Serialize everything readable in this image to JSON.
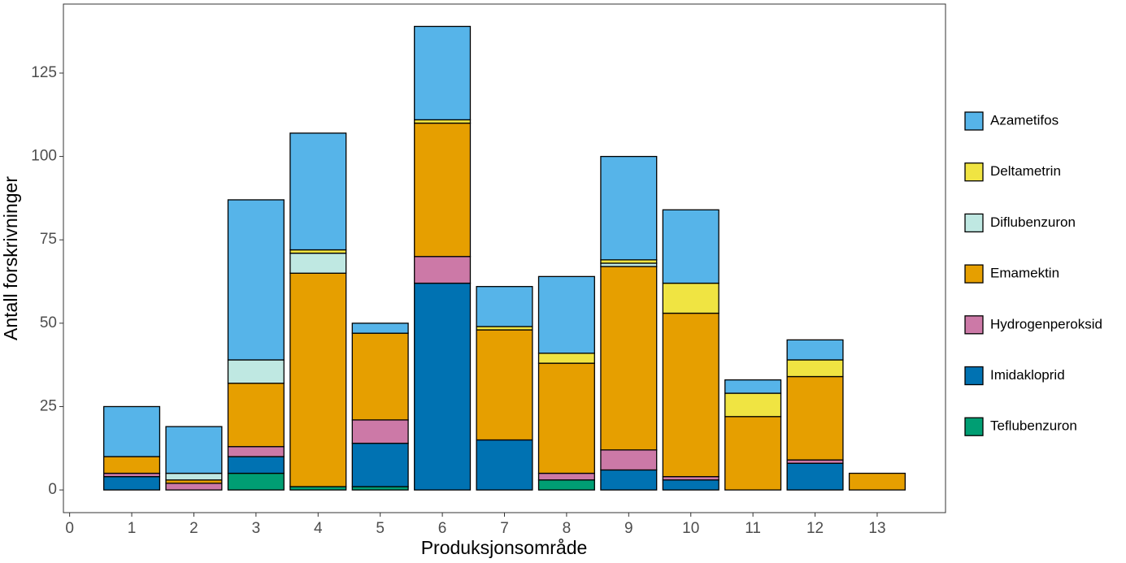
{
  "chart_data": {
    "type": "stacked_bar",
    "x_label": "Produksjonsområde",
    "y_label": "Antall forskrivninger",
    "x": [
      1,
      2,
      3,
      4,
      5,
      6,
      7,
      8,
      9,
      10,
      11,
      12,
      13
    ],
    "xlim": [
      -0.1,
      14.1
    ],
    "xticks": [
      0,
      1,
      2,
      3,
      4,
      5,
      6,
      7,
      8,
      9,
      10,
      11,
      12,
      13
    ],
    "ylim": [
      -6.8,
      145.7
    ],
    "yticks": [
      0,
      25,
      50,
      75,
      100,
      125
    ],
    "legend": "right",
    "series": [
      {
        "name": "Azametifos",
        "color": "#56B4E9",
        "values": [
          15,
          14,
          48,
          35,
          3,
          28,
          12,
          23,
          31,
          22,
          4,
          6,
          0
        ]
      },
      {
        "name": "Deltametrin",
        "color": "#F0E442",
        "values": [
          0,
          0,
          0,
          1,
          0,
          1,
          1,
          3,
          1,
          9,
          7,
          5,
          0
        ]
      },
      {
        "name": "Diflubenzuron",
        "color": "#BFE8E2",
        "values": [
          0,
          2,
          7,
          6,
          0,
          0,
          0,
          0,
          1,
          0,
          0,
          0,
          0
        ]
      },
      {
        "name": "Emamektin",
        "color": "#E69F00",
        "values": [
          5,
          1,
          19,
          64,
          26,
          40,
          33,
          33,
          55,
          49,
          22,
          25,
          5
        ]
      },
      {
        "name": "Hydrogenperoksid",
        "color": "#CC79A7",
        "values": [
          1,
          2,
          3,
          0,
          7,
          8,
          0,
          2,
          6,
          1,
          0,
          1,
          0
        ]
      },
      {
        "name": "Imidakloprid",
        "color": "#0072B2",
        "values": [
          4,
          0,
          5,
          0,
          13,
          62,
          15,
          0,
          6,
          3,
          0,
          8,
          0
        ]
      },
      {
        "name": "Teflubenzuron",
        "color": "#009E73",
        "values": [
          0,
          0,
          5,
          1,
          1,
          0,
          0,
          3,
          0,
          0,
          0,
          0,
          0
        ]
      }
    ]
  }
}
